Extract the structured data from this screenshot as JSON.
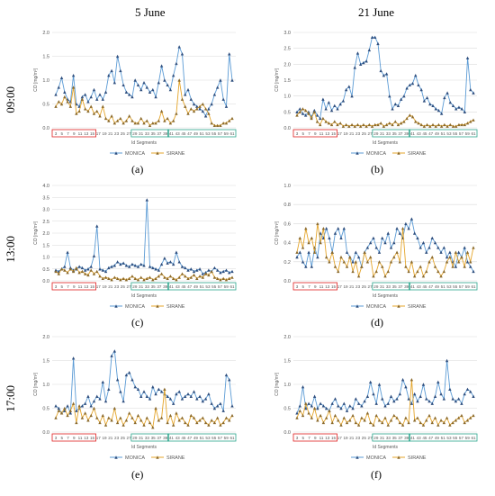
{
  "columns": [
    "5 June",
    "21 June"
  ],
  "rows": [
    "09:00",
    "13:00",
    "17:00"
  ],
  "panel_labels": [
    "(a)",
    "(b)",
    "(c)",
    "(d)",
    "(e)",
    "(f)"
  ],
  "colors": {
    "monica": "#5B9BD5",
    "monica_marker": "#2E4E7E",
    "sirane": "#E4A52B",
    "seg_red": "#E02020",
    "seg_teal": "#2BA58C",
    "grid": "#D9D9D9"
  },
  "chart_data": [
    {
      "type": "line",
      "panel": "(a)",
      "ylabel": "CO [mg/m³]",
      "xlabel": "Id Segments",
      "ylim": [
        0,
        2.0
      ],
      "yticks": [
        0.0,
        0.5,
        1.0,
        1.5,
        2.0
      ],
      "x": [
        1,
        2,
        3,
        4,
        5,
        6,
        7,
        8,
        9,
        10,
        11,
        12,
        13,
        14,
        15,
        16,
        17,
        18,
        19,
        20,
        21,
        22,
        23,
        24,
        25,
        26,
        27,
        28,
        29,
        30,
        31,
        32,
        33,
        34,
        35,
        36,
        37,
        38,
        39,
        40,
        41,
        42,
        43,
        44,
        45,
        46,
        47,
        48,
        49,
        50,
        51,
        52,
        53,
        54,
        55,
        56,
        57,
        58,
        59,
        60,
        61
      ],
      "xtick_labels": [
        "3",
        "5",
        "7",
        "9",
        "11",
        "13",
        "15",
        "17",
        "19",
        "21",
        "23",
        "25",
        "27",
        "29",
        "31",
        "33",
        "35",
        "37",
        "39",
        "41",
        "43",
        "45",
        "47",
        "49",
        "51",
        "53",
        "55",
        "57",
        "59",
        "61"
      ],
      "series": [
        {
          "name": "MONICA",
          "values": [
            0.7,
            0.85,
            1.05,
            0.75,
            0.6,
            0.55,
            1.1,
            0.5,
            0.45,
            0.65,
            0.7,
            0.55,
            0.65,
            0.8,
            0.6,
            0.7,
            0.6,
            0.75,
            1.1,
            1.2,
            0.95,
            1.5,
            1.2,
            0.9,
            0.75,
            0.7,
            0.65,
            1.0,
            0.9,
            0.8,
            0.95,
            0.85,
            0.75,
            0.8,
            0.65,
            0.95,
            1.3,
            1.0,
            0.9,
            0.8,
            1.1,
            1.35,
            1.7,
            1.55,
            0.7,
            0.8,
            0.6,
            0.5,
            0.45,
            0.4,
            0.35,
            0.25,
            0.4,
            0.5,
            0.7,
            0.85,
            1.0,
            0.6,
            0.45,
            1.55,
            1.0
          ]
        },
        {
          "name": "SIRANE",
          "values": [
            0.45,
            0.55,
            0.5,
            0.65,
            0.55,
            0.45,
            0.85,
            0.3,
            0.35,
            0.6,
            0.4,
            0.35,
            0.45,
            0.3,
            0.35,
            0.25,
            0.45,
            0.2,
            0.15,
            0.25,
            0.1,
            0.15,
            0.2,
            0.1,
            0.15,
            0.25,
            0.15,
            0.1,
            0.1,
            0.2,
            0.1,
            0.15,
            0.05,
            0.1,
            0.1,
            0.15,
            0.35,
            0.15,
            0.2,
            0.1,
            0.15,
            0.3,
            1.0,
            0.6,
            0.45,
            0.3,
            0.4,
            0.35,
            0.4,
            0.45,
            0.5,
            0.4,
            0.3,
            0.1,
            0.05,
            0.05,
            0.05,
            0.1,
            0.1,
            0.15,
            0.2
          ]
        }
      ],
      "legend": [
        "MONICA",
        "SIRANE"
      ]
    },
    {
      "type": "line",
      "panel": "(b)",
      "ylabel": "CO [mg/m³]",
      "xlabel": "Id Segments",
      "ylim": [
        0,
        3.0
      ],
      "yticks": [
        0.0,
        0.5,
        1.0,
        1.5,
        2.0,
        2.5,
        3.0
      ],
      "xtick_labels": [
        "3",
        "5",
        "7",
        "9",
        "11",
        "13",
        "15",
        "17",
        "19",
        "21",
        "23",
        "25",
        "27",
        "29",
        "31",
        "33",
        "35",
        "37",
        "39",
        "41",
        "43",
        "45",
        "47",
        "49",
        "51",
        "53",
        "55",
        "57",
        "59",
        "61"
      ],
      "series": [
        {
          "name": "MONICA",
          "values": [
            0.5,
            0.6,
            0.45,
            0.4,
            0.5,
            0.35,
            0.55,
            0.4,
            0.3,
            0.9,
            0.6,
            0.8,
            0.55,
            0.7,
            0.6,
            0.75,
            0.85,
            1.2,
            1.3,
            1.0,
            1.9,
            2.35,
            2.0,
            2.05,
            2.1,
            2.45,
            2.85,
            2.85,
            2.65,
            1.8,
            1.65,
            1.7,
            1.0,
            0.6,
            0.75,
            0.7,
            0.9,
            1.0,
            1.25,
            1.35,
            1.4,
            1.65,
            1.35,
            1.2,
            0.85,
            0.95,
            0.75,
            0.7,
            0.6,
            0.55,
            0.45,
            0.95,
            1.1,
            0.8,
            0.7,
            0.6,
            0.65,
            0.6,
            0.5,
            2.2,
            1.2,
            1.1
          ]
        },
        {
          "name": "SIRANE",
          "values": [
            0.4,
            0.5,
            0.6,
            0.55,
            0.45,
            0.3,
            0.5,
            0.2,
            0.1,
            0.3,
            0.2,
            0.15,
            0.1,
            0.2,
            0.1,
            0.15,
            0.05,
            0.1,
            0.05,
            0.1,
            0.05,
            0.1,
            0.05,
            0.1,
            0.05,
            0.1,
            0.05,
            0.1,
            0.1,
            0.15,
            0.05,
            0.1,
            0.15,
            0.1,
            0.2,
            0.1,
            0.15,
            0.2,
            0.3,
            0.4,
            0.35,
            0.2,
            0.15,
            0.1,
            0.05,
            0.1,
            0.05,
            0.1,
            0.05,
            0.1,
            0.05,
            0.1,
            0.05,
            0.1,
            0.05,
            0.05,
            0.1,
            0.1,
            0.1,
            0.15,
            0.2,
            0.25
          ]
        }
      ],
      "legend": [
        "MONICA",
        "SIRANE"
      ]
    },
    {
      "type": "line",
      "panel": "(c)",
      "ylabel": "CO [mg/m³]",
      "xlabel": "Id Segments",
      "ylim": [
        0,
        4.0
      ],
      "yticks": [
        0.0,
        0.5,
        1.0,
        1.5,
        2.0,
        2.5,
        3.0,
        3.5,
        4.0
      ],
      "xtick_labels": [
        "3",
        "5",
        "7",
        "9",
        "11",
        "13",
        "15",
        "17",
        "19",
        "21",
        "23",
        "25",
        "27",
        "29",
        "31",
        "33",
        "35",
        "37",
        "39",
        "41",
        "43",
        "45",
        "47",
        "49",
        "51",
        "53",
        "55",
        "57",
        "59",
        "61"
      ],
      "series": [
        {
          "name": "MONICA",
          "values": [
            0.45,
            0.4,
            0.5,
            0.6,
            1.2,
            0.55,
            0.45,
            0.5,
            0.6,
            0.55,
            0.45,
            0.5,
            0.6,
            1.05,
            2.3,
            0.5,
            0.45,
            0.4,
            0.55,
            0.6,
            0.65,
            0.8,
            0.7,
            0.75,
            0.65,
            0.6,
            0.7,
            0.65,
            0.6,
            0.7,
            0.65,
            3.4,
            0.6,
            0.55,
            0.5,
            0.45,
            0.7,
            0.95,
            0.75,
            0.8,
            0.7,
            1.2,
            0.8,
            0.6,
            0.55,
            0.45,
            0.5,
            0.4,
            0.45,
            0.5,
            0.3,
            0.35,
            0.45,
            0.4,
            0.55,
            0.45,
            0.35,
            0.4,
            0.45,
            0.35,
            0.4
          ]
        },
        {
          "name": "SIRANE",
          "values": [
            0.4,
            0.3,
            0.5,
            0.45,
            0.35,
            0.5,
            0.4,
            0.55,
            0.35,
            0.4,
            0.3,
            0.25,
            0.45,
            0.3,
            0.4,
            0.2,
            0.1,
            0.15,
            0.1,
            0.05,
            0.15,
            0.1,
            0.05,
            0.1,
            0.05,
            0.1,
            0.2,
            0.1,
            0.05,
            0.15,
            0.05,
            0.1,
            0.15,
            0.05,
            0.1,
            0.2,
            0.3,
            0.15,
            0.1,
            0.2,
            0.1,
            0.05,
            0.15,
            0.3,
            0.2,
            0.1,
            0.15,
            0.25,
            0.1,
            0.2,
            0.15,
            0.3,
            0.25,
            0.4,
            0.15,
            0.1,
            0.05,
            0.1,
            0.05,
            0.1,
            0.15
          ]
        }
      ],
      "legend": [
        "MONICA",
        "SIRANE"
      ]
    },
    {
      "type": "line",
      "panel": "(d)",
      "ylabel": "CO [mg/m³]",
      "xlabel": "Id Segments",
      "ylim": [
        0,
        1.0
      ],
      "yticks": [
        0.0,
        0.2,
        0.4,
        0.6,
        0.8,
        1.0
      ],
      "xtick_labels": [
        "3",
        "5",
        "7",
        "9",
        "11",
        "13",
        "15",
        "17",
        "19",
        "21",
        "23",
        "25",
        "27",
        "29",
        "31",
        "33",
        "35",
        "37",
        "39",
        "41",
        "43",
        "45",
        "47",
        "49",
        "51",
        "53",
        "55",
        "57",
        "59",
        "61"
      ],
      "series": [
        {
          "name": "MONICA",
          "values": [
            0.25,
            0.3,
            0.2,
            0.15,
            0.3,
            0.15,
            0.35,
            0.25,
            0.5,
            0.45,
            0.55,
            0.45,
            0.3,
            0.5,
            0.55,
            0.45,
            0.55,
            0.3,
            0.25,
            0.2,
            0.3,
            0.25,
            0.15,
            0.3,
            0.35,
            0.4,
            0.45,
            0.35,
            0.3,
            0.45,
            0.4,
            0.5,
            0.35,
            0.4,
            0.55,
            0.5,
            0.45,
            0.6,
            0.55,
            0.65,
            0.5,
            0.45,
            0.35,
            0.4,
            0.3,
            0.35,
            0.45,
            0.4,
            0.35,
            0.3,
            0.35,
            0.25,
            0.3,
            0.2,
            0.15,
            0.3,
            0.25,
            0.35,
            0.2,
            0.15,
            0.1
          ]
        },
        {
          "name": "SIRANE",
          "values": [
            0.3,
            0.45,
            0.35,
            0.55,
            0.4,
            0.45,
            0.3,
            0.6,
            0.4,
            0.55,
            0.25,
            0.2,
            0.3,
            0.15,
            0.1,
            0.25,
            0.2,
            0.15,
            0.25,
            0.1,
            0.2,
            0.05,
            0.15,
            0.3,
            0.2,
            0.25,
            0.05,
            0.1,
            0.2,
            0.15,
            0.05,
            0.1,
            0.2,
            0.25,
            0.3,
            0.2,
            0.55,
            0.15,
            0.1,
            0.2,
            0.05,
            0.1,
            0.15,
            0.05,
            0.1,
            0.2,
            0.25,
            0.15,
            0.1,
            0.05,
            0.1,
            0.2,
            0.25,
            0.15,
            0.3,
            0.2,
            0.25,
            0.15,
            0.3,
            0.2,
            0.35
          ]
        }
      ],
      "legend": [
        "MONICA",
        "SIRANE"
      ]
    },
    {
      "type": "line",
      "panel": "(e)",
      "ylabel": "CO [mg/m³]",
      "xlabel": "Id Segments",
      "ylim": [
        0,
        2.0
      ],
      "yticks": [
        0.0,
        0.5,
        1.0,
        1.5,
        2.0
      ],
      "xtick_labels": [
        "3",
        "5",
        "7",
        "9",
        "11",
        "13",
        "15",
        "17",
        "19",
        "21",
        "23",
        "25",
        "27",
        "29",
        "31",
        "33",
        "35",
        "37",
        "39",
        "41",
        "43",
        "45",
        "47",
        "49",
        "51",
        "53",
        "55",
        "57",
        "59",
        "61"
      ],
      "series": [
        {
          "name": "MONICA",
          "values": [
            0.55,
            0.5,
            0.4,
            0.45,
            0.55,
            0.4,
            1.55,
            0.45,
            0.5,
            0.55,
            0.6,
            0.75,
            0.55,
            0.65,
            0.75,
            0.7,
            1.05,
            0.65,
            0.9,
            1.6,
            1.7,
            1.1,
            0.85,
            0.65,
            1.2,
            1.25,
            1.1,
            0.95,
            0.9,
            0.75,
            0.85,
            0.75,
            0.7,
            0.95,
            0.8,
            0.9,
            0.85,
            0.8,
            0.75,
            0.7,
            0.6,
            0.8,
            0.85,
            0.7,
            0.75,
            0.8,
            0.75,
            0.85,
            0.7,
            0.75,
            0.65,
            0.7,
            0.8,
            0.6,
            0.5,
            0.55,
            0.6,
            0.45,
            1.2,
            1.1,
            0.55
          ]
        },
        {
          "name": "SIRANE",
          "values": [
            0.3,
            0.45,
            0.4,
            0.5,
            0.35,
            0.45,
            0.6,
            0.2,
            0.55,
            0.3,
            0.4,
            0.25,
            0.35,
            0.5,
            0.3,
            0.2,
            0.35,
            0.15,
            0.3,
            0.25,
            0.5,
            0.2,
            0.3,
            0.15,
            0.25,
            0.4,
            0.3,
            0.2,
            0.35,
            0.25,
            0.15,
            0.3,
            0.2,
            0.1,
            0.5,
            0.25,
            0.3,
            0.9,
            0.2,
            0.35,
            0.15,
            0.4,
            0.25,
            0.3,
            0.2,
            0.15,
            0.35,
            0.3,
            0.2,
            0.25,
            0.3,
            0.2,
            0.15,
            0.25,
            0.2,
            0.3,
            0.15,
            0.2,
            0.3,
            0.25,
            0.35
          ]
        }
      ],
      "legend": [
        "MONICA",
        "SIRANE"
      ]
    },
    {
      "type": "line",
      "panel": "(f)",
      "ylabel": "CO [mg/m³]",
      "xlabel": "Id Segments",
      "ylim": [
        0,
        2.0
      ],
      "yticks": [
        0.0,
        0.5,
        1.0,
        1.5,
        2.0
      ],
      "xtick_labels": [
        "3",
        "5",
        "7",
        "9",
        "11",
        "13",
        "15",
        "17",
        "19",
        "21",
        "23",
        "25",
        "27",
        "29",
        "31",
        "33",
        "35",
        "37",
        "39",
        "41",
        "43",
        "45",
        "47",
        "49",
        "51",
        "53",
        "55",
        "57",
        "59",
        "61"
      ],
      "series": [
        {
          "name": "MONICA",
          "values": [
            0.4,
            0.55,
            0.95,
            0.5,
            0.6,
            0.55,
            0.75,
            0.5,
            0.6,
            0.55,
            0.5,
            0.45,
            0.6,
            0.7,
            0.55,
            0.5,
            0.6,
            0.45,
            0.55,
            0.5,
            0.7,
            0.6,
            0.55,
            0.65,
            0.75,
            1.05,
            0.8,
            0.6,
            1.0,
            0.7,
            0.55,
            0.6,
            0.75,
            0.65,
            0.7,
            0.8,
            1.1,
            0.95,
            0.7,
            0.6,
            0.8,
            0.65,
            0.75,
            1.0,
            0.7,
            0.65,
            0.6,
            0.75,
            1.05,
            0.8,
            0.7,
            1.5,
            0.9,
            0.7,
            0.65,
            0.7,
            0.6,
            0.8,
            0.9,
            0.85,
            0.75
          ]
        },
        {
          "name": "SIRANE",
          "values": [
            0.3,
            0.45,
            0.35,
            0.6,
            0.4,
            0.3,
            0.5,
            0.25,
            0.35,
            0.2,
            0.3,
            0.45,
            0.2,
            0.35,
            0.25,
            0.15,
            0.3,
            0.2,
            0.25,
            0.35,
            0.2,
            0.15,
            0.3,
            0.25,
            0.4,
            0.2,
            0.15,
            0.35,
            0.25,
            0.2,
            0.3,
            0.15,
            0.25,
            0.35,
            0.3,
            0.2,
            0.15,
            0.3,
            0.2,
            1.1,
            0.25,
            0.3,
            0.2,
            0.15,
            0.25,
            0.35,
            0.2,
            0.3,
            0.15,
            0.25,
            0.2,
            0.3,
            0.15,
            0.2,
            0.25,
            0.3,
            0.35,
            0.2,
            0.25,
            0.3,
            0.35
          ]
        }
      ],
      "legend": [
        "MONICA",
        "SIRANE"
      ]
    }
  ]
}
